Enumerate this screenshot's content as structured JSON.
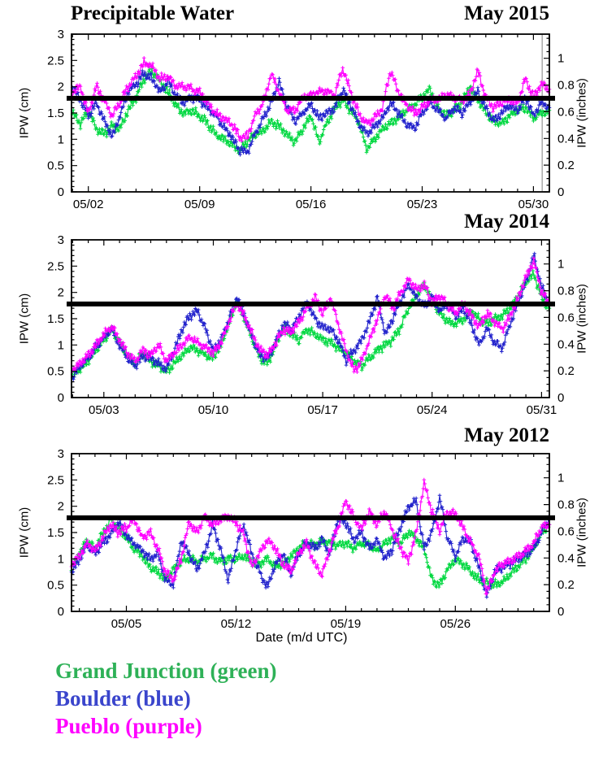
{
  "header": {
    "title": "Precipitable Water"
  },
  "axis": {
    "x_label": "Date (m/d UTC)"
  },
  "legend": {
    "items": [
      {
        "label": "Grand Junction (green)",
        "color": "#2eb157"
      },
      {
        "label": "Boulder (blue)",
        "color": "#3a45cc"
      },
      {
        "label": "Pueblo (purple)",
        "color": "#ff00ff"
      }
    ]
  },
  "reference_line": {
    "value_cm": 1.78,
    "value_inches": 0.7,
    "color": "#000000"
  },
  "chart_data": [
    {
      "type": "line",
      "title": "May 2015",
      "ylabel_left": "IPW (cm)",
      "ylabel_right": "IPW (inches)",
      "ylim_cm": [
        0,
        3
      ],
      "y_ticks_cm": [
        0,
        0.5,
        1,
        1.5,
        2,
        2.5,
        3
      ],
      "y_tick_labels_cm": [
        "0",
        "0.5",
        "1",
        "1.5",
        "2",
        "2.5",
        "3"
      ],
      "y_ticks_inches": [
        0,
        0.2,
        0.4,
        0.6,
        0.8,
        1
      ],
      "y_tick_labels_inches": [
        "0",
        "0.2",
        "0.4",
        "0.6",
        "0.8",
        "1"
      ],
      "x_range_day": [
        0.94,
        31.0
      ],
      "x_ticks": [
        {
          "day": 2,
          "label": "05/02"
        },
        {
          "day": 9,
          "label": "05/09"
        },
        {
          "day": 16,
          "label": "05/16"
        },
        {
          "day": 23,
          "label": "05/23"
        },
        {
          "day": 30,
          "label": "05/30"
        }
      ],
      "reference_line_cm": 1.78,
      "now_line_day": 30.55,
      "series": [
        {
          "name": "Grand Junction",
          "color": "#00d840",
          "x_start_day": 1.0,
          "x_step_day": 0.5,
          "values_cm": [
            1.5,
            1.3,
            1.55,
            1.2,
            1.1,
            1.25,
            1.2,
            1.55,
            1.8,
            2.15,
            2.3,
            2.1,
            1.9,
            1.65,
            1.5,
            1.55,
            1.45,
            1.3,
            1.1,
            1.0,
            0.9,
            0.8,
            0.95,
            1.1,
            1.15,
            1.35,
            1.25,
            1.1,
            0.95,
            1.2,
            1.45,
            0.95,
            1.3,
            1.6,
            1.75,
            1.55,
            1.35,
            0.8,
            1.0,
            1.2,
            1.3,
            1.4,
            1.55,
            1.65,
            1.8,
            1.95,
            1.6,
            1.45,
            1.55,
            1.7,
            2.0,
            1.75,
            1.5,
            1.35,
            1.3,
            1.45,
            1.55,
            1.6,
            1.4,
            1.5,
            1.55
          ]
        },
        {
          "name": "Boulder",
          "color": "#2222cc",
          "x_start_day": 1.0,
          "x_step_day": 0.5,
          "values_cm": [
            2.0,
            1.75,
            1.45,
            1.7,
            1.35,
            1.05,
            1.45,
            1.9,
            2.05,
            2.25,
            2.15,
            1.9,
            2.1,
            1.85,
            1.7,
            1.8,
            1.75,
            1.6,
            1.45,
            1.25,
            1.05,
            0.8,
            0.75,
            1.1,
            1.4,
            1.7,
            2.1,
            1.6,
            1.35,
            1.5,
            1.65,
            1.4,
            1.5,
            1.6,
            1.95,
            1.65,
            1.3,
            1.1,
            1.25,
            1.4,
            1.7,
            1.5,
            1.3,
            1.2,
            1.5,
            1.7,
            1.55,
            1.4,
            1.6,
            1.5,
            1.7,
            1.9,
            1.6,
            1.35,
            1.5,
            1.65,
            1.55,
            1.8,
            1.45,
            1.7,
            1.6
          ]
        },
        {
          "name": "Pueblo",
          "color": "#ff00ff",
          "x_start_day": 1.0,
          "x_step_day": 0.5,
          "values_cm": [
            1.9,
            2.0,
            1.5,
            2.0,
            1.75,
            1.45,
            1.7,
            2.0,
            2.2,
            2.45,
            2.4,
            2.15,
            2.2,
            2.0,
            2.0,
            1.95,
            1.9,
            1.7,
            1.5,
            1.4,
            1.3,
            1.05,
            1.05,
            1.45,
            1.7,
            2.25,
            1.9,
            1.55,
            1.55,
            1.8,
            1.85,
            1.9,
            1.9,
            1.85,
            2.35,
            1.9,
            1.5,
            1.3,
            1.4,
            1.6,
            2.3,
            1.9,
            1.65,
            1.5,
            1.6,
            1.75,
            1.75,
            1.85,
            1.8,
            1.75,
            1.85,
            2.3,
            1.8,
            1.6,
            1.7,
            1.75,
            1.7,
            2.15,
            1.8,
            2.05,
            1.95
          ]
        }
      ]
    },
    {
      "type": "line",
      "title": "May 2014",
      "ylabel_left": "IPW (cm)",
      "ylabel_right": "IPW (inches)",
      "ylim_cm": [
        0,
        3
      ],
      "y_ticks_cm": [
        0,
        0.5,
        1,
        1.5,
        2,
        2.5,
        3
      ],
      "y_tick_labels_cm": [
        "0",
        "0.5",
        "1",
        "1.5",
        "2",
        "2.5",
        "3"
      ],
      "y_ticks_inches": [
        0,
        0.2,
        0.4,
        0.6,
        0.8,
        1
      ],
      "y_tick_labels_inches": [
        "0",
        "0.2",
        "0.4",
        "0.6",
        "0.8",
        "1"
      ],
      "x_range_day": [
        0.93,
        31.5
      ],
      "x_ticks": [
        {
          "day": 3,
          "label": "05/03"
        },
        {
          "day": 10,
          "label": "05/10"
        },
        {
          "day": 17,
          "label": "05/17"
        },
        {
          "day": 24,
          "label": "05/24"
        },
        {
          "day": 31,
          "label": "05/31"
        }
      ],
      "reference_line_cm": 1.78,
      "series": [
        {
          "name": "Grand Junction",
          "color": "#00d840",
          "x_start_day": 1.0,
          "x_step_day": 0.5,
          "values_cm": [
            0.45,
            0.55,
            0.7,
            0.9,
            1.1,
            1.3,
            1.05,
            0.8,
            0.65,
            0.85,
            0.7,
            0.6,
            0.5,
            0.65,
            0.8,
            0.95,
            0.9,
            0.8,
            0.75,
            1.0,
            1.4,
            1.85,
            1.5,
            1.1,
            0.75,
            0.65,
            1.0,
            1.35,
            1.2,
            1.1,
            1.3,
            1.2,
            1.1,
            1.05,
            0.95,
            0.85,
            0.7,
            0.6,
            0.75,
            0.9,
            1.0,
            1.1,
            1.35,
            1.7,
            1.95,
            2.15,
            1.85,
            1.6,
            1.45,
            1.4,
            1.5,
            1.65,
            1.5,
            1.4,
            1.5,
            1.55,
            1.7,
            1.95,
            2.2,
            2.35,
            1.9,
            1.7
          ]
        },
        {
          "name": "Boulder",
          "color": "#2222cc",
          "x_start_day": 1.0,
          "x_step_day": 0.5,
          "values_cm": [
            0.4,
            0.6,
            0.75,
            0.95,
            1.15,
            1.3,
            1.0,
            0.75,
            0.6,
            0.8,
            0.75,
            0.65,
            0.55,
            0.9,
            1.3,
            1.55,
            1.65,
            1.3,
            0.9,
            1.1,
            1.5,
            1.9,
            1.55,
            1.15,
            0.8,
            0.75,
            1.05,
            1.4,
            1.3,
            1.55,
            1.8,
            1.5,
            1.35,
            1.3,
            1.1,
            0.7,
            0.9,
            1.1,
            1.45,
            1.9,
            1.2,
            1.5,
            1.85,
            2.15,
            1.9,
            1.75,
            1.9,
            1.65,
            1.8,
            1.55,
            1.7,
            1.4,
            1.0,
            1.3,
            1.05,
            0.95,
            1.4,
            1.8,
            2.2,
            2.7,
            2.1,
            1.75
          ]
        },
        {
          "name": "Pueblo",
          "color": "#ff00ff",
          "x_start_day": 1.0,
          "x_step_day": 0.5,
          "values_cm": [
            0.55,
            0.65,
            0.8,
            1.0,
            1.2,
            1.35,
            1.1,
            0.85,
            0.7,
            0.9,
            0.8,
            1.0,
            0.7,
            0.85,
            1.0,
            1.15,
            1.05,
            0.95,
            0.85,
            1.05,
            1.45,
            1.8,
            1.55,
            1.2,
            0.9,
            0.8,
            1.05,
            1.3,
            1.25,
            1.45,
            1.7,
            1.9,
            1.6,
            1.9,
            1.4,
            0.9,
            0.5,
            0.7,
            1.1,
            1.5,
            1.95,
            1.7,
            2.0,
            2.25,
            2.05,
            2.15,
            1.8,
            1.95,
            1.75,
            1.6,
            1.8,
            1.55,
            1.35,
            1.6,
            1.45,
            1.3,
            1.55,
            1.9,
            2.3,
            2.6,
            2.0,
            1.8
          ]
        }
      ]
    },
    {
      "type": "line",
      "title": "May 2012",
      "ylabel_left": "IPW (cm)",
      "ylabel_right": "IPW (inches)",
      "ylim_cm": [
        0,
        3
      ],
      "y_ticks_cm": [
        0,
        0.5,
        1,
        1.5,
        2,
        2.5,
        3
      ],
      "y_tick_labels_cm": [
        "0",
        "0.5",
        "1",
        "1.5",
        "2",
        "2.5",
        "3"
      ],
      "y_ticks_inches": [
        0,
        0.2,
        0.4,
        0.6,
        0.8,
        1
      ],
      "y_tick_labels_inches": [
        "0",
        "0.2",
        "0.4",
        "0.6",
        "0.8",
        "1"
      ],
      "x_range_day": [
        1.5,
        32.0
      ],
      "x_ticks": [
        {
          "day": 5,
          "label": "05/05"
        },
        {
          "day": 12,
          "label": "05/12"
        },
        {
          "day": 19,
          "label": "05/19"
        },
        {
          "day": 26,
          "label": "05/26"
        }
      ],
      "reference_line_cm": 1.78,
      "series": [
        {
          "name": "Grand Junction",
          "color": "#00d840",
          "x_start_day": 1.5,
          "x_step_day": 0.5,
          "values_cm": [
            0.8,
            1.1,
            1.35,
            1.2,
            1.5,
            1.75,
            1.6,
            1.4,
            1.2,
            1.05,
            0.85,
            0.75,
            0.6,
            0.8,
            0.95,
            1.0,
            0.95,
            1.0,
            1.05,
            0.95,
            1.0,
            1.0,
            1.05,
            0.95,
            0.9,
            1.0,
            0.85,
            0.9,
            1.05,
            1.2,
            1.3,
            1.25,
            1.35,
            1.3,
            1.25,
            1.3,
            1.2,
            1.3,
            1.25,
            1.15,
            1.3,
            1.4,
            1.3,
            1.5,
            1.4,
            1.2,
            0.6,
            0.5,
            0.8,
            1.0,
            0.9,
            0.75,
            0.6,
            0.55,
            0.5,
            0.55,
            0.7,
            0.85,
            1.0,
            1.2,
            1.5,
            1.65
          ]
        },
        {
          "name": "Boulder",
          "color": "#2222cc",
          "x_start_day": 1.5,
          "x_step_day": 0.5,
          "values_cm": [
            0.75,
            1.0,
            1.25,
            1.1,
            1.3,
            1.45,
            1.7,
            1.45,
            1.3,
            1.15,
            1.0,
            1.1,
            0.6,
            0.5,
            1.35,
            1.1,
            0.8,
            1.1,
            1.65,
            1.2,
            0.6,
            1.2,
            1.65,
            1.1,
            0.75,
            0.45,
            0.9,
            1.1,
            0.7,
            1.1,
            1.3,
            1.2,
            1.35,
            1.1,
            1.75,
            1.7,
            1.35,
            1.5,
            1.2,
            1.35,
            1.0,
            1.2,
            1.6,
            2.0,
            2.1,
            1.2,
            1.5,
            2.15,
            1.4,
            1.05,
            1.4,
            1.3,
            0.85,
            0.3,
            0.75,
            0.85,
            0.9,
            1.0,
            1.1,
            1.2,
            1.5,
            1.8
          ]
        },
        {
          "name": "Pueblo",
          "color": "#ff00ff",
          "x_start_day": 1.5,
          "x_step_day": 0.5,
          "values_cm": [
            0.9,
            1.05,
            1.3,
            1.15,
            1.4,
            1.65,
            1.5,
            1.6,
            1.75,
            1.4,
            1.5,
            1.2,
            0.75,
            0.6,
            1.0,
            1.7,
            1.5,
            1.8,
            1.65,
            1.75,
            1.8,
            1.7,
            1.45,
            0.85,
            1.1,
            1.35,
            1.2,
            0.9,
            0.75,
            1.1,
            1.3,
            0.9,
            0.7,
            1.2,
            1.6,
            2.1,
            1.8,
            1.55,
            1.9,
            1.65,
            1.9,
            1.55,
            1.2,
            0.95,
            1.5,
            2.45,
            1.9,
            1.55,
            1.9,
            1.85,
            1.6,
            1.3,
            1.05,
            0.35,
            0.75,
            0.9,
            0.95,
            1.05,
            1.15,
            1.3,
            1.6,
            1.65
          ]
        }
      ]
    }
  ]
}
